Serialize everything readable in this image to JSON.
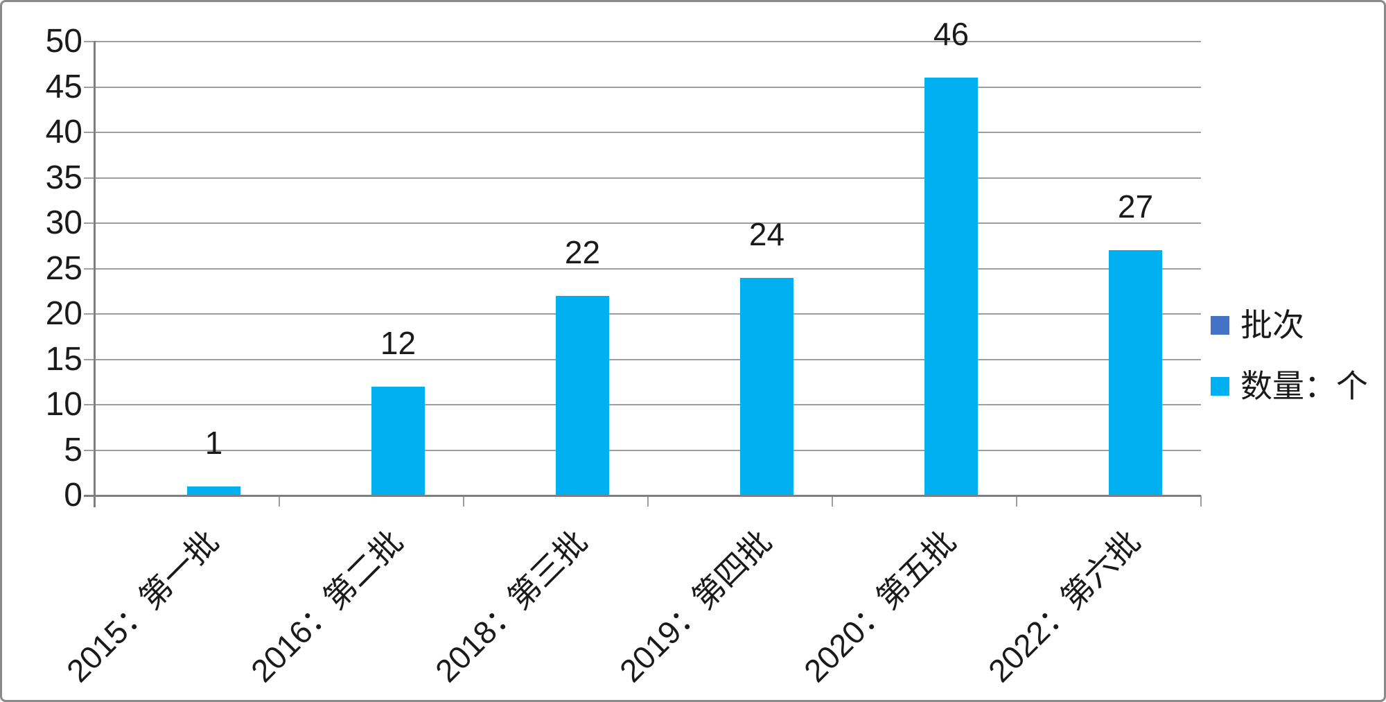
{
  "chart_data": {
    "type": "bar",
    "title": "",
    "xlabel": "",
    "ylabel": "",
    "categories": [
      "2015：第一批",
      "2016：第二批",
      "2018：第三批",
      "2019：第四批",
      "2020：第五批",
      "2022：第六批"
    ],
    "series": [
      {
        "name": "批次",
        "color": "#4472C4",
        "values": []
      },
      {
        "name": "数量：个",
        "color": "#00B0F0",
        "values": [
          1,
          12,
          22,
          24,
          46,
          27
        ]
      }
    ],
    "data_labels": [
      1,
      12,
      22,
      24,
      46,
      27
    ],
    "ylim": [
      0,
      50
    ],
    "ytick_step": 5,
    "yticks": [
      0,
      5,
      10,
      15,
      20,
      25,
      30,
      35,
      40,
      45,
      50
    ],
    "grid": "horizontal",
    "legend_position": "right",
    "x_label_rotation_deg": 45
  },
  "colors": {
    "bar": "#00B0F0",
    "grid": "#9e9e9e",
    "axis": "#7f7f7f",
    "text": "#1a1a1a",
    "frame_border": "#8a8a8a",
    "background": "#ffffff"
  }
}
